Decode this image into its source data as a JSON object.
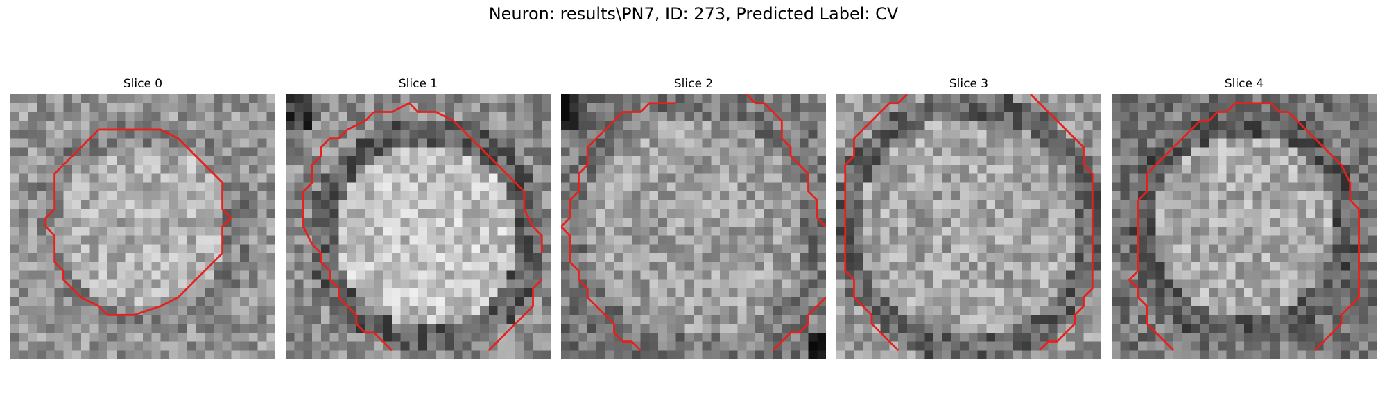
{
  "figure": {
    "title": "Neuron: results\\PN7, ID: 273, Predicted Label: CV"
  },
  "contour_color": "#e8201c",
  "panels": [
    {
      "title": "Slice 0",
      "image": "grayscale noisy microscopy patch of a neuron cell body, bright center, darker surroundings",
      "contour": [
        [
          10,
          4
        ],
        [
          17,
          4
        ],
        [
          19,
          5
        ],
        [
          20,
          6
        ],
        [
          21,
          7
        ],
        [
          22,
          8
        ],
        [
          23,
          9
        ],
        [
          24,
          10
        ],
        [
          24,
          13
        ],
        [
          25,
          14
        ],
        [
          24,
          15
        ],
        [
          24,
          18
        ],
        [
          23,
          19
        ],
        [
          22,
          20
        ],
        [
          21,
          21
        ],
        [
          20,
          22
        ],
        [
          19,
          23
        ],
        [
          17,
          24
        ],
        [
          14,
          25
        ],
        [
          11,
          25
        ],
        [
          10,
          24
        ],
        [
          8,
          23
        ],
        [
          7,
          22
        ],
        [
          6,
          21
        ],
        [
          6,
          20
        ],
        [
          5,
          19
        ],
        [
          5,
          16
        ],
        [
          4,
          15
        ],
        [
          4,
          14
        ],
        [
          5,
          13
        ],
        [
          5,
          9
        ],
        [
          6,
          8
        ],
        [
          7,
          7
        ],
        [
          8,
          6
        ],
        [
          9,
          5
        ],
        [
          10,
          4
        ]
      ]
    },
    {
      "title": "Slice 1",
      "image": "grayscale noisy microscopy patch, large bright rounded cell body, dark upper-left corner",
      "contour_segments": [
        [
          [
            10,
            2
          ],
          [
            12,
            2
          ],
          [
            14,
            1
          ],
          [
            15,
            2
          ],
          [
            17,
            2
          ],
          [
            19,
            3
          ],
          [
            20,
            4
          ],
          [
            21,
            5
          ],
          [
            22,
            6
          ],
          [
            23,
            7
          ],
          [
            24,
            8
          ],
          [
            25,
            9
          ],
          [
            26,
            10
          ],
          [
            27,
            11
          ],
          [
            27,
            13
          ],
          [
            28,
            15
          ],
          [
            29,
            16
          ],
          [
            29,
            18
          ]
        ],
        [
          [
            10,
            2
          ],
          [
            9,
            3
          ],
          [
            7,
            4
          ],
          [
            6,
            5
          ],
          [
            5,
            5
          ],
          [
            4,
            6
          ],
          [
            4,
            7
          ],
          [
            3,
            8
          ],
          [
            3,
            9
          ],
          [
            3,
            10
          ],
          [
            2,
            11
          ],
          [
            2,
            15
          ],
          [
            3,
            17
          ],
          [
            4,
            18
          ],
          [
            4,
            19
          ],
          [
            5,
            20
          ],
          [
            5,
            21
          ],
          [
            6,
            22
          ],
          [
            6,
            23
          ],
          [
            7,
            24
          ],
          [
            8,
            25
          ],
          [
            8,
            26
          ],
          [
            9,
            27
          ],
          [
            10,
            27
          ],
          [
            11,
            28
          ],
          [
            12,
            29
          ]
        ],
        [
          [
            29,
            21
          ],
          [
            28,
            22
          ],
          [
            28,
            24
          ],
          [
            27,
            25
          ],
          [
            26,
            26
          ],
          [
            25,
            27
          ],
          [
            24,
            28
          ],
          [
            23,
            29
          ]
        ]
      ]
    },
    {
      "title": "Slice 2",
      "image": "grayscale noisy microscopy patch, uniform medium-gray cell body, dark upper-left and lower-right corners",
      "contour_segments": [
        [
          [
            13,
            1
          ],
          [
            10,
            1
          ],
          [
            9,
            2
          ],
          [
            7,
            2
          ],
          [
            6,
            3
          ],
          [
            5,
            4
          ],
          [
            4,
            5
          ],
          [
            3,
            6
          ],
          [
            3,
            8
          ],
          [
            2,
            9
          ],
          [
            2,
            11
          ],
          [
            1,
            12
          ],
          [
            1,
            14
          ],
          [
            0,
            15
          ],
          [
            1,
            16
          ],
          [
            1,
            19
          ],
          [
            2,
            20
          ],
          [
            2,
            21
          ],
          [
            3,
            22
          ],
          [
            3,
            23
          ],
          [
            4,
            24
          ],
          [
            5,
            25
          ],
          [
            6,
            26
          ],
          [
            6,
            27
          ],
          [
            7,
            28
          ],
          [
            8,
            28
          ],
          [
            9,
            29
          ]
        ],
        [
          [
            21,
            0
          ],
          [
            22,
            1
          ],
          [
            23,
            1
          ],
          [
            24,
            2
          ],
          [
            25,
            3
          ],
          [
            25,
            5
          ],
          [
            26,
            6
          ],
          [
            26,
            7
          ],
          [
            27,
            8
          ],
          [
            28,
            9
          ],
          [
            28,
            11
          ],
          [
            29,
            12
          ],
          [
            29,
            14
          ],
          [
            30,
            15
          ]
        ],
        [
          [
            30,
            23
          ],
          [
            29,
            24
          ],
          [
            28,
            25
          ],
          [
            28,
            26
          ],
          [
            27,
            27
          ],
          [
            26,
            27
          ],
          [
            25,
            28
          ],
          [
            24,
            29
          ]
        ]
      ]
    },
    {
      "title": "Slice 3",
      "image": "grayscale noisy microscopy patch, medium-gray cell body with darker rim",
      "contour_segments": [
        [
          [
            8,
            0
          ],
          [
            7,
            1
          ],
          [
            6,
            1
          ],
          [
            5,
            2
          ],
          [
            4,
            3
          ],
          [
            3,
            4
          ],
          [
            2,
            5
          ],
          [
            2,
            7
          ],
          [
            1,
            8
          ],
          [
            1,
            20
          ],
          [
            2,
            21
          ],
          [
            2,
            23
          ],
          [
            3,
            24
          ],
          [
            4,
            25
          ],
          [
            4,
            26
          ],
          [
            5,
            27
          ],
          [
            6,
            28
          ],
          [
            7,
            29
          ]
        ],
        [
          [
            22,
            0
          ],
          [
            23,
            1
          ],
          [
            24,
            2
          ],
          [
            25,
            3
          ],
          [
            26,
            4
          ],
          [
            27,
            5
          ],
          [
            28,
            6
          ],
          [
            28,
            8
          ],
          [
            29,
            9
          ],
          [
            29,
            22
          ],
          [
            28,
            23
          ],
          [
            28,
            24
          ],
          [
            27,
            25
          ],
          [
            27,
            26
          ],
          [
            26,
            27
          ],
          [
            25,
            28
          ],
          [
            24,
            28
          ],
          [
            23,
            29
          ]
        ]
      ]
    },
    {
      "title": "Slice 4",
      "image": "grayscale noisy microscopy patch, rounded bright cell body with dark ring",
      "contour_segments": [
        [
          [
            7,
            29
          ],
          [
            6,
            28
          ],
          [
            5,
            27
          ],
          [
            4,
            26
          ],
          [
            4,
            24
          ],
          [
            3,
            23
          ],
          [
            3,
            22
          ],
          [
            2,
            21
          ],
          [
            3,
            20
          ],
          [
            3,
            12
          ],
          [
            4,
            11
          ],
          [
            4,
            9
          ],
          [
            5,
            8
          ],
          [
            6,
            7
          ],
          [
            7,
            6
          ],
          [
            8,
            5
          ],
          [
            9,
            4
          ],
          [
            10,
            3
          ],
          [
            11,
            3
          ],
          [
            12,
            2
          ],
          [
            13,
            2
          ],
          [
            14,
            1
          ],
          [
            18,
            1
          ],
          [
            19,
            2
          ],
          [
            20,
            2
          ],
          [
            21,
            3
          ],
          [
            22,
            4
          ],
          [
            23,
            5
          ],
          [
            24,
            6
          ],
          [
            25,
            7
          ],
          [
            26,
            8
          ],
          [
            27,
            10
          ],
          [
            27,
            12
          ],
          [
            28,
            13
          ],
          [
            28,
            23
          ],
          [
            27,
            24
          ],
          [
            26,
            25
          ],
          [
            26,
            26
          ],
          [
            25,
            27
          ],
          [
            24,
            28
          ],
          [
            23,
            29
          ]
        ]
      ]
    }
  ]
}
